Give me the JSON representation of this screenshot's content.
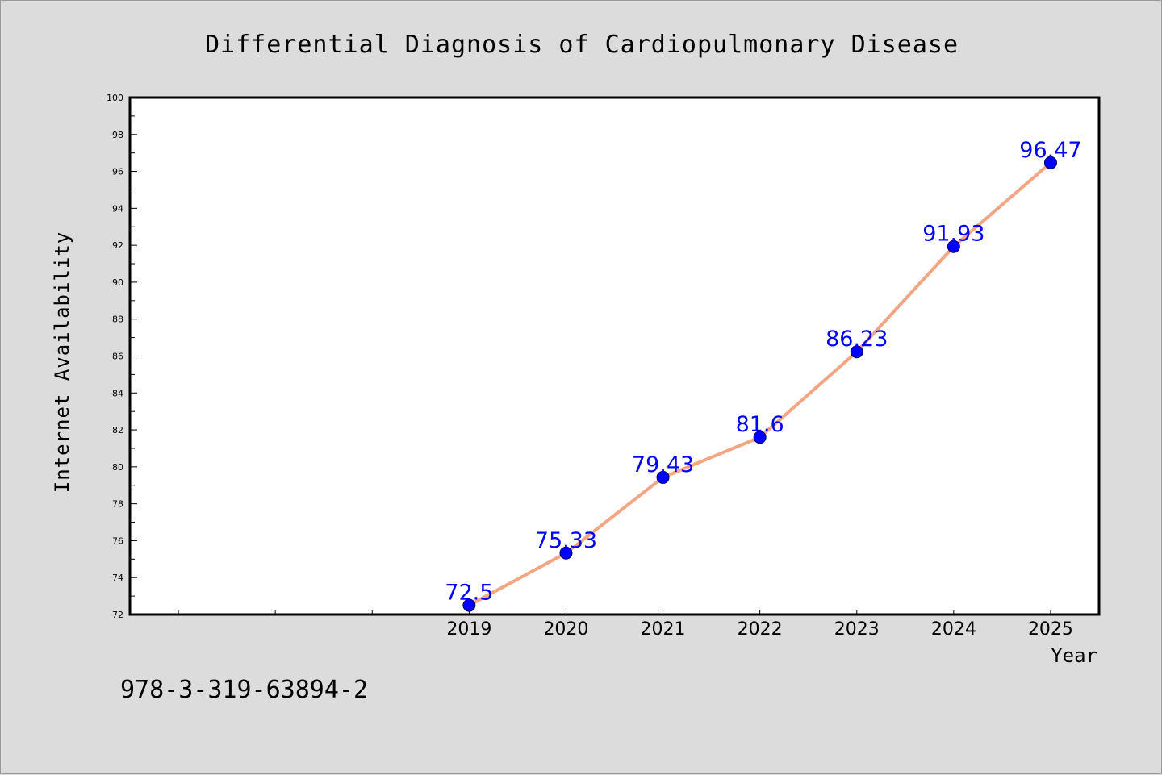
{
  "chart_data": {
    "type": "line",
    "title": "Differential Diagnosis of Cardiopulmonary Disease",
    "xlabel": "Year",
    "ylabel": "Internet Availability",
    "x": [
      "2019",
      "2020",
      "2021",
      "2022",
      "2023",
      "2024",
      "2025"
    ],
    "xlim": [
      2015.5,
      2025.5
    ],
    "ylim": [
      72,
      100
    ],
    "yticks": [
      "72",
      "74",
      "76",
      "78",
      "80",
      "82",
      "84",
      "86",
      "88",
      "90",
      "92",
      "94",
      "96",
      "98",
      "100"
    ],
    "series": [
      {
        "values": [
          72.5,
          75.33,
          79.43,
          81.6,
          86.23,
          91.93,
          96.47
        ],
        "labels": [
          "72.5",
          "75.33",
          "79.43",
          "81.6",
          "86.23",
          "91.93",
          "96.47"
        ],
        "line_color": "#f4a582",
        "marker_color": "#0000ff"
      }
    ],
    "data_label_color": "#0000ff",
    "grid": false,
    "legend": "none",
    "annotation": "978-3-319-63894-2"
  }
}
